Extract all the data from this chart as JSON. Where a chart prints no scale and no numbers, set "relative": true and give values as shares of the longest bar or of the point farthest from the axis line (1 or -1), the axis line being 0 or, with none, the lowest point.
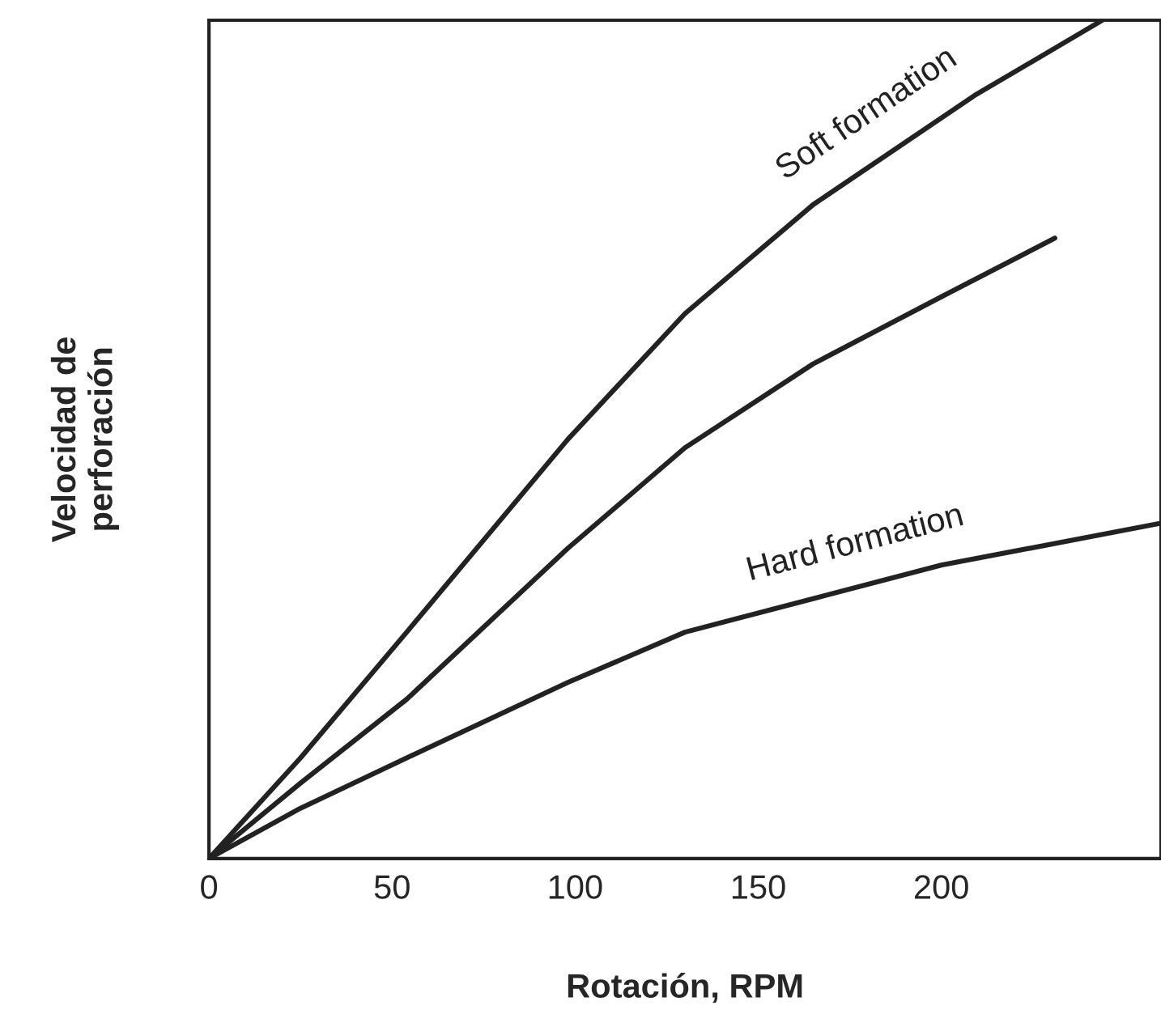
{
  "chart_data": {
    "type": "line",
    "xlabel": "Rotación, RPM",
    "ylabel": "Velocidad de\nperforación",
    "relative": true,
    "xlim": [
      0,
      260
    ],
    "xticks": [
      0,
      50,
      100,
      150,
      200
    ],
    "tick_labels": "x",
    "grid": false,
    "legend": false,
    "series": [
      {
        "name": "Soft formation",
        "color": "#222222",
        "x": [
          0,
          25,
          54,
          98,
          130,
          165,
          209,
          244
        ],
        "values": [
          0,
          0.12,
          0.27,
          0.5,
          0.65,
          0.78,
          0.91,
          1
        ]
      },
      {
        "color": "#222222",
        "x": [
          0,
          25,
          54,
          98,
          130,
          165,
          200,
          231
        ],
        "values": [
          0,
          0.09,
          0.19,
          0.37,
          0.49,
          0.59,
          0.67,
          0.74
        ]
      },
      {
        "name": "Hard formation",
        "color": "#222222",
        "x": [
          0,
          25,
          54,
          98,
          130,
          165,
          200,
          260
        ],
        "values": [
          0,
          0.06,
          0.12,
          0.21,
          0.27,
          0.31,
          0.35,
          0.4
        ]
      }
    ]
  }
}
